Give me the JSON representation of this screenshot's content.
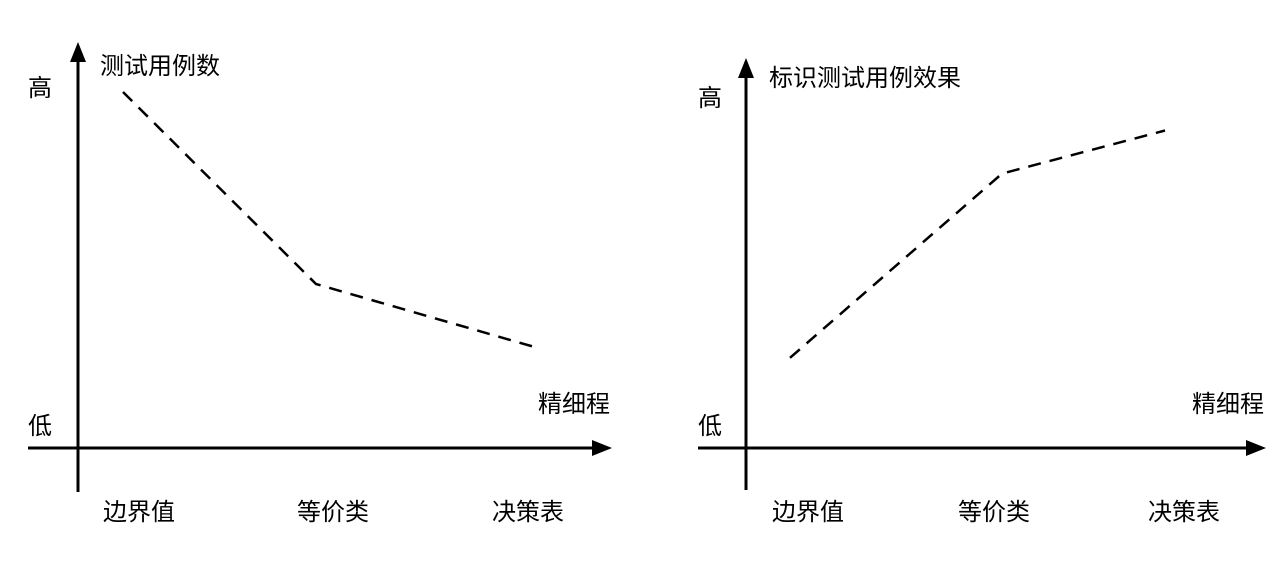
{
  "chart_data": [
    {
      "type": "line",
      "ylabel": "测试用例数",
      "xlabel": "精细程",
      "y_high_label": "高",
      "y_low_label": "低",
      "categories": [
        "边界值",
        "等价类",
        "决策表"
      ],
      "values": [
        0.89,
        0.41,
        0.25
      ],
      "ylim": [
        0,
        1
      ],
      "line_style": "dashed",
      "grid": false
    },
    {
      "type": "line",
      "ylabel": "标识测试用例效果",
      "xlabel": "精细程",
      "y_high_label": "高",
      "y_low_label": "低",
      "categories": [
        "边界值",
        "等价类",
        "决策表"
      ],
      "values": [
        0.23,
        0.7,
        0.81
      ],
      "ylim": [
        0,
        1
      ],
      "line_style": "dashed",
      "grid": false
    }
  ]
}
